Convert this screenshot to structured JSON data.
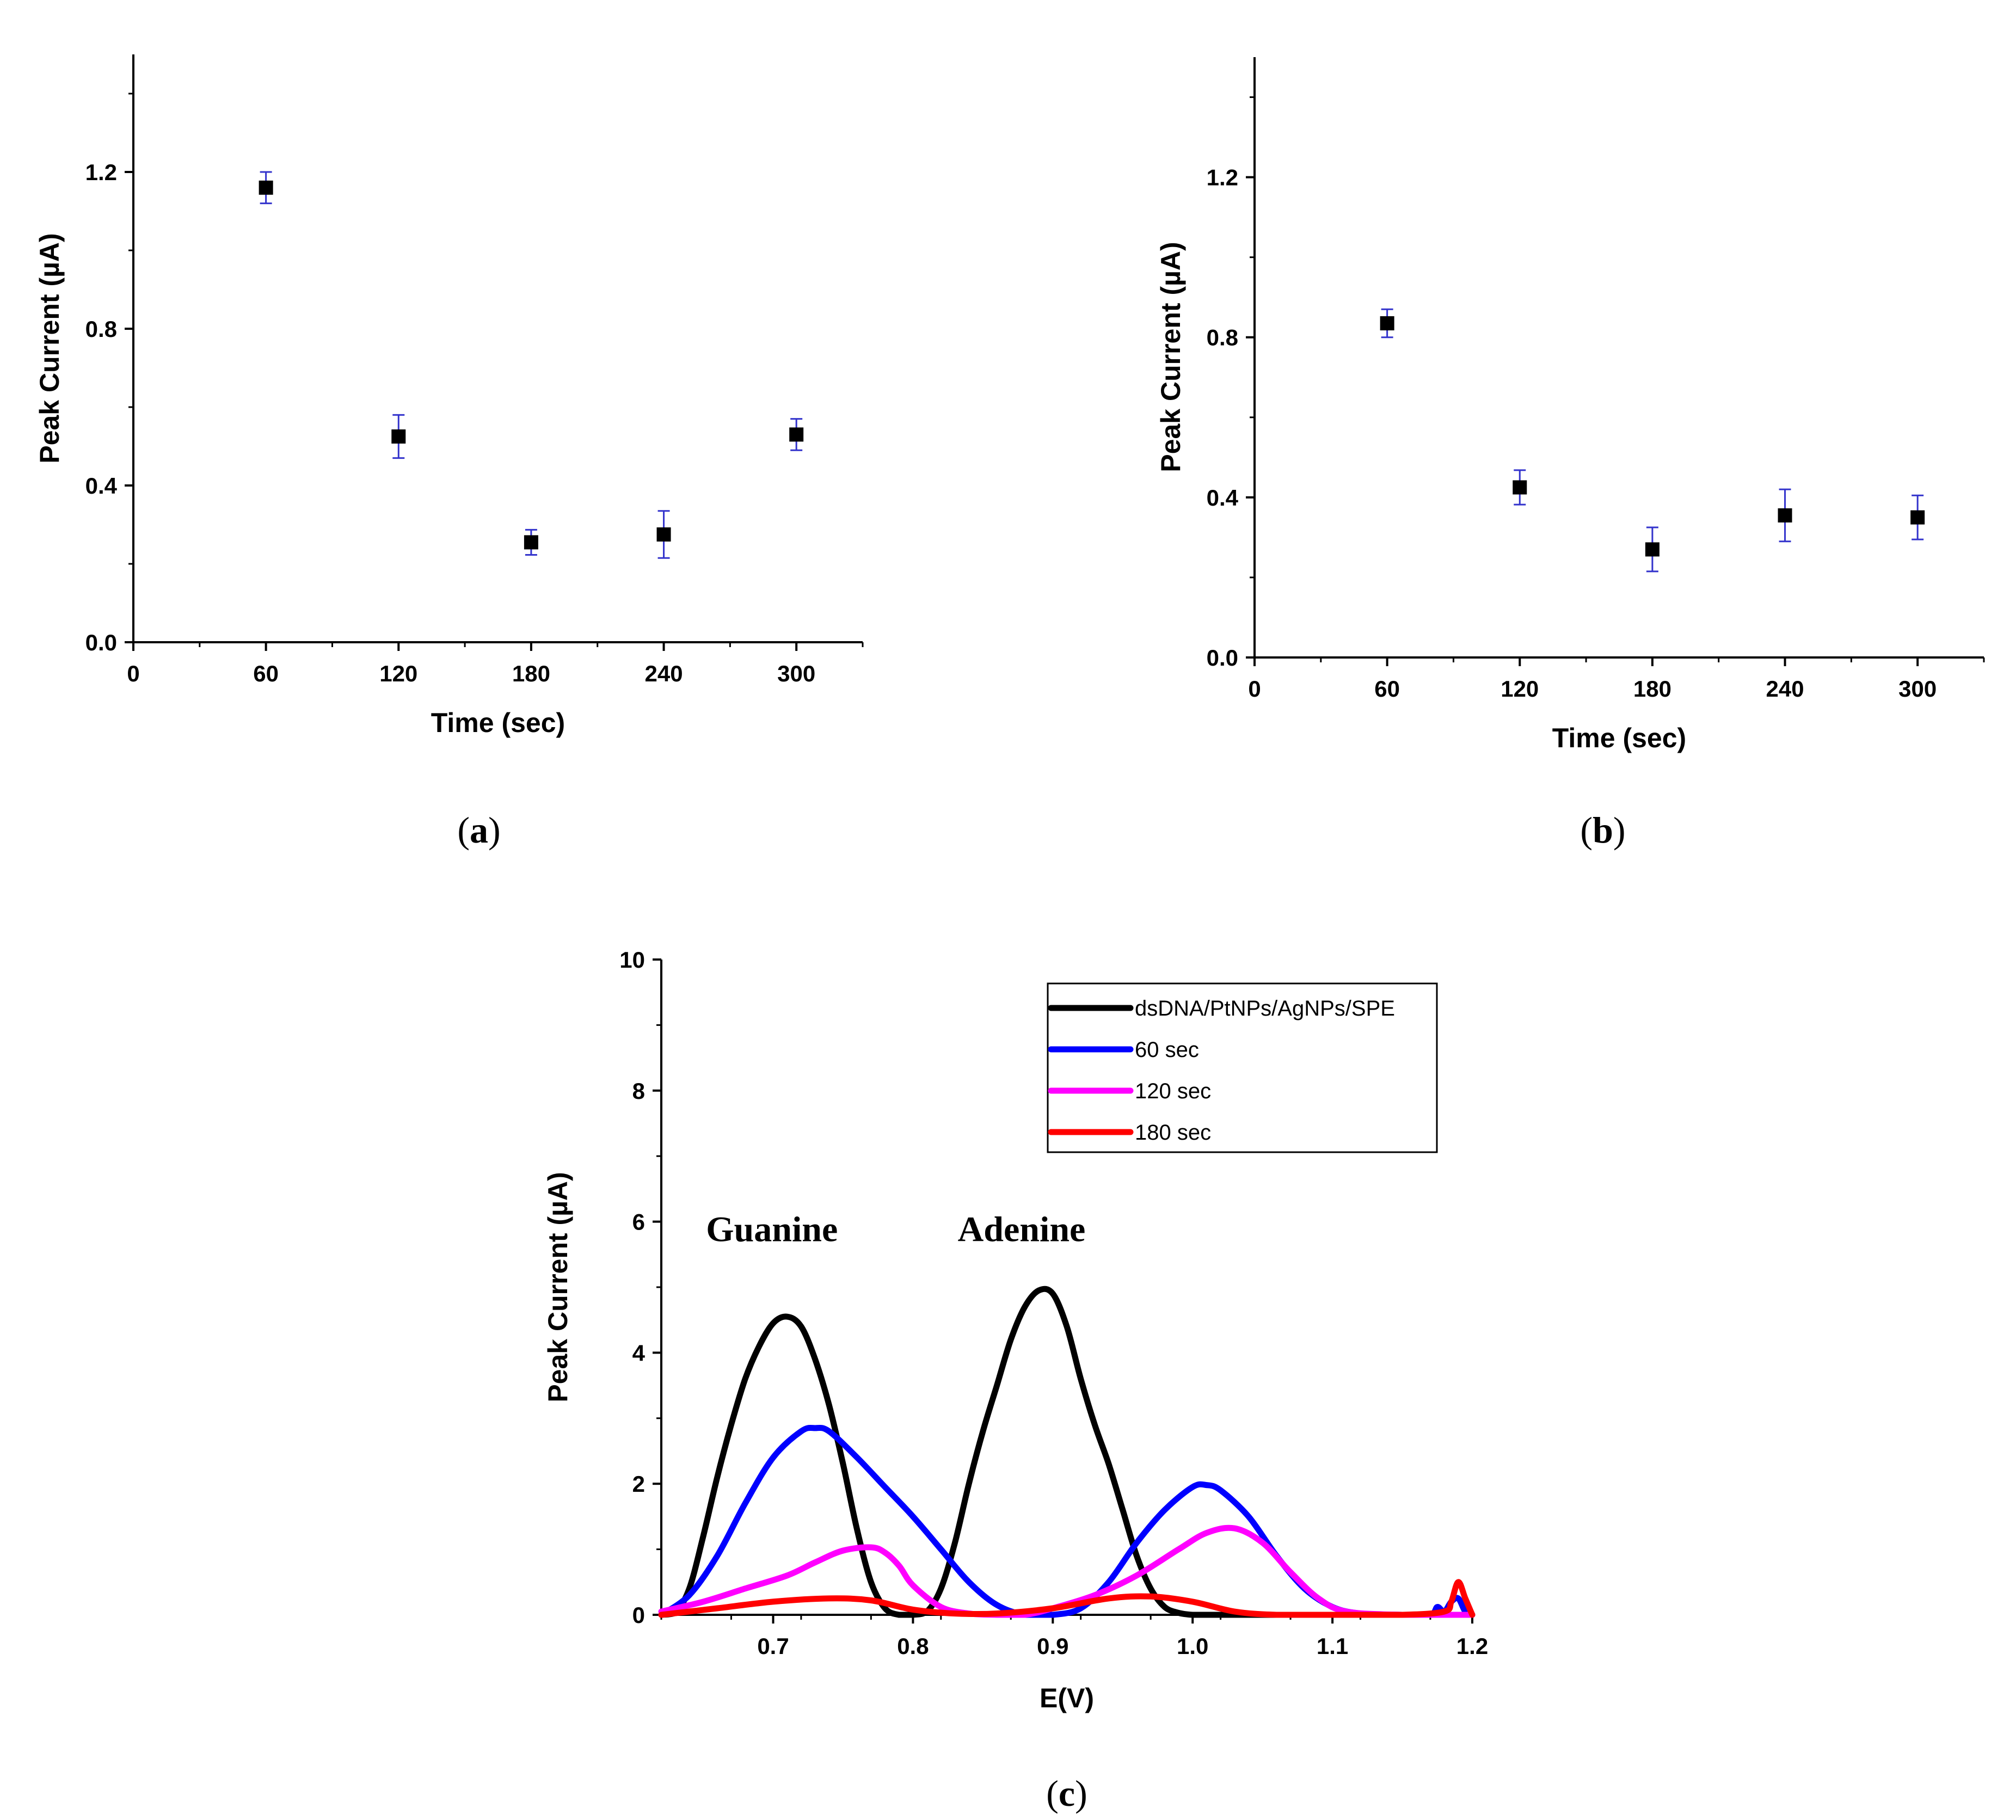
{
  "chart_data": [
    {
      "panel": "a",
      "type": "scatter",
      "panel_label": {
        "open": "(",
        "letter": "a",
        "close": ")"
      },
      "xlabel": "Time (sec)",
      "ylabel": "Peak Current (µA)",
      "xlim": [
        0,
        330
      ],
      "ylim": [
        0,
        1.5
      ],
      "xticks": [
        0,
        60,
        120,
        180,
        240,
        300
      ],
      "xtick_labels": [
        "0",
        "60",
        "120",
        "180",
        "240",
        "300"
      ],
      "yticks": [
        0,
        0.4,
        0.8,
        1.2
      ],
      "ytick_labels": [
        "0.0",
        "0.4",
        "0.8",
        "1.2"
      ],
      "marker_color": "#000000",
      "error_color": "#3333cc",
      "points": [
        {
          "x": 60,
          "y": 1.16,
          "err": 0.04
        },
        {
          "x": 120,
          "y": 0.525,
          "err": 0.055
        },
        {
          "x": 180,
          "y": 0.255,
          "err": 0.032
        },
        {
          "x": 240,
          "y": 0.275,
          "err": 0.06
        },
        {
          "x": 300,
          "y": 0.53,
          "err": 0.04
        }
      ]
    },
    {
      "panel": "b",
      "type": "scatter",
      "panel_label": {
        "open": "(",
        "letter": "b",
        "close": ")"
      },
      "xlabel": "Time (sec)",
      "ylabel": "Peak Current (µA)",
      "xlim": [
        0,
        330
      ],
      "ylim": [
        0,
        1.5
      ],
      "xticks": [
        0,
        60,
        120,
        180,
        240,
        300
      ],
      "xtick_labels": [
        "0",
        "60",
        "120",
        "180",
        "240",
        "300"
      ],
      "yticks": [
        0,
        0.4,
        0.8,
        1.2
      ],
      "ytick_labels": [
        "0.0",
        "0.4",
        "0.8",
        "1.2"
      ],
      "marker_color": "#000000",
      "error_color": "#3333cc",
      "points": [
        {
          "x": 60,
          "y": 0.835,
          "err": 0.035
        },
        {
          "x": 120,
          "y": 0.425,
          "err": 0.043
        },
        {
          "x": 180,
          "y": 0.27,
          "err": 0.055
        },
        {
          "x": 240,
          "y": 0.355,
          "err": 0.065
        },
        {
          "x": 300,
          "y": 0.35,
          "err": 0.055
        }
      ]
    },
    {
      "panel": "c",
      "type": "line",
      "panel_label": {
        "open": "(",
        "letter": "c",
        "close": ")"
      },
      "xlabel": "E(V)",
      "ylabel": "Peak Current (µA)",
      "xlim": [
        0.62,
        1.2
      ],
      "ylim": [
        0,
        10
      ],
      "xticks": [
        0.7,
        0.8,
        0.9,
        1.0,
        1.1,
        1.2
      ],
      "xtick_labels": [
        "0.7",
        "0.8",
        "0.9",
        "1.0",
        "1.1",
        "1.2"
      ],
      "yticks": [
        0,
        2,
        4,
        6,
        8,
        10
      ],
      "ytick_labels": [
        "0",
        "2",
        "4",
        "6",
        "8",
        "10"
      ],
      "annotations": [
        {
          "text": "Guanine",
          "x": 0.652,
          "y": 5.7
        },
        {
          "text": "Adenine",
          "x": 0.832,
          "y": 5.7
        }
      ],
      "legend_position": "top-right",
      "series": [
        {
          "name": "dsDNA/PtNPs/AgNPs/SPE",
          "color": "#000000",
          "x": [
            0.62,
            0.63,
            0.64,
            0.65,
            0.66,
            0.67,
            0.68,
            0.69,
            0.7,
            0.71,
            0.72,
            0.73,
            0.74,
            0.75,
            0.76,
            0.77,
            0.78,
            0.79,
            0.8,
            0.81,
            0.82,
            0.83,
            0.84,
            0.85,
            0.86,
            0.87,
            0.88,
            0.89,
            0.9,
            0.91,
            0.92,
            0.93,
            0.94,
            0.95,
            0.96,
            0.97,
            0.98,
            0.99,
            1.0,
            1.01,
            1.02,
            1.05,
            1.1,
            1.15,
            1.2
          ],
          "y": [
            0.0,
            0.03,
            0.4,
            1.2,
            2.1,
            2.9,
            3.6,
            4.1,
            4.45,
            4.55,
            4.4,
            3.9,
            3.2,
            2.3,
            1.3,
            0.5,
            0.1,
            0.0,
            0.0,
            0.05,
            0.4,
            1.1,
            2.0,
            2.8,
            3.5,
            4.2,
            4.7,
            4.95,
            4.9,
            4.4,
            3.6,
            2.9,
            2.3,
            1.6,
            0.9,
            0.4,
            0.12,
            0.03,
            0.0,
            0.0,
            0.0,
            0.0,
            0.0,
            0.0,
            0.0
          ]
        },
        {
          "name": "60 sec",
          "color": "#0000ff",
          "x": [
            0.62,
            0.64,
            0.66,
            0.68,
            0.7,
            0.72,
            0.73,
            0.74,
            0.76,
            0.78,
            0.8,
            0.82,
            0.84,
            0.86,
            0.88,
            0.9,
            0.92,
            0.94,
            0.96,
            0.98,
            1.0,
            1.01,
            1.02,
            1.04,
            1.06,
            1.08,
            1.1,
            1.12,
            1.15,
            1.17,
            1.175,
            1.18,
            1.185,
            1.19,
            1.195,
            1.2
          ],
          "y": [
            0.0,
            0.3,
            0.9,
            1.7,
            2.4,
            2.8,
            2.85,
            2.8,
            2.4,
            1.95,
            1.5,
            1.0,
            0.5,
            0.15,
            0.0,
            0.0,
            0.1,
            0.5,
            1.1,
            1.6,
            1.95,
            1.98,
            1.9,
            1.5,
            0.9,
            0.4,
            0.12,
            0.02,
            0.0,
            0.0,
            0.12,
            0.05,
            0.2,
            0.25,
            0.05,
            0.0
          ]
        },
        {
          "name": "120 sec",
          "color": "#ff00ff",
          "x": [
            0.62,
            0.65,
            0.68,
            0.71,
            0.73,
            0.75,
            0.77,
            0.78,
            0.79,
            0.8,
            0.82,
            0.84,
            0.86,
            0.88,
            0.9,
            0.93,
            0.96,
            0.99,
            1.01,
            1.03,
            1.05,
            1.07,
            1.09,
            1.11,
            1.15,
            1.19,
            1.2
          ],
          "y": [
            0.05,
            0.2,
            0.4,
            0.6,
            0.8,
            0.98,
            1.03,
            0.95,
            0.75,
            0.45,
            0.12,
            0.02,
            0.0,
            0.0,
            0.1,
            0.3,
            0.6,
            1.0,
            1.25,
            1.32,
            1.1,
            0.65,
            0.25,
            0.05,
            0.0,
            0.0,
            0.0
          ]
        },
        {
          "name": "180 sec",
          "color": "#ff0000",
          "x": [
            0.62,
            0.66,
            0.7,
            0.74,
            0.77,
            0.8,
            0.83,
            0.86,
            0.9,
            0.94,
            0.97,
            1.0,
            1.03,
            1.06,
            1.1,
            1.15,
            1.18,
            1.185,
            1.19,
            1.195,
            1.2
          ],
          "y": [
            0.0,
            0.1,
            0.2,
            0.25,
            0.22,
            0.08,
            0.02,
            0.02,
            0.1,
            0.25,
            0.28,
            0.2,
            0.05,
            0.0,
            0.0,
            0.0,
            0.05,
            0.2,
            0.5,
            0.25,
            0.0
          ]
        }
      ]
    }
  ]
}
